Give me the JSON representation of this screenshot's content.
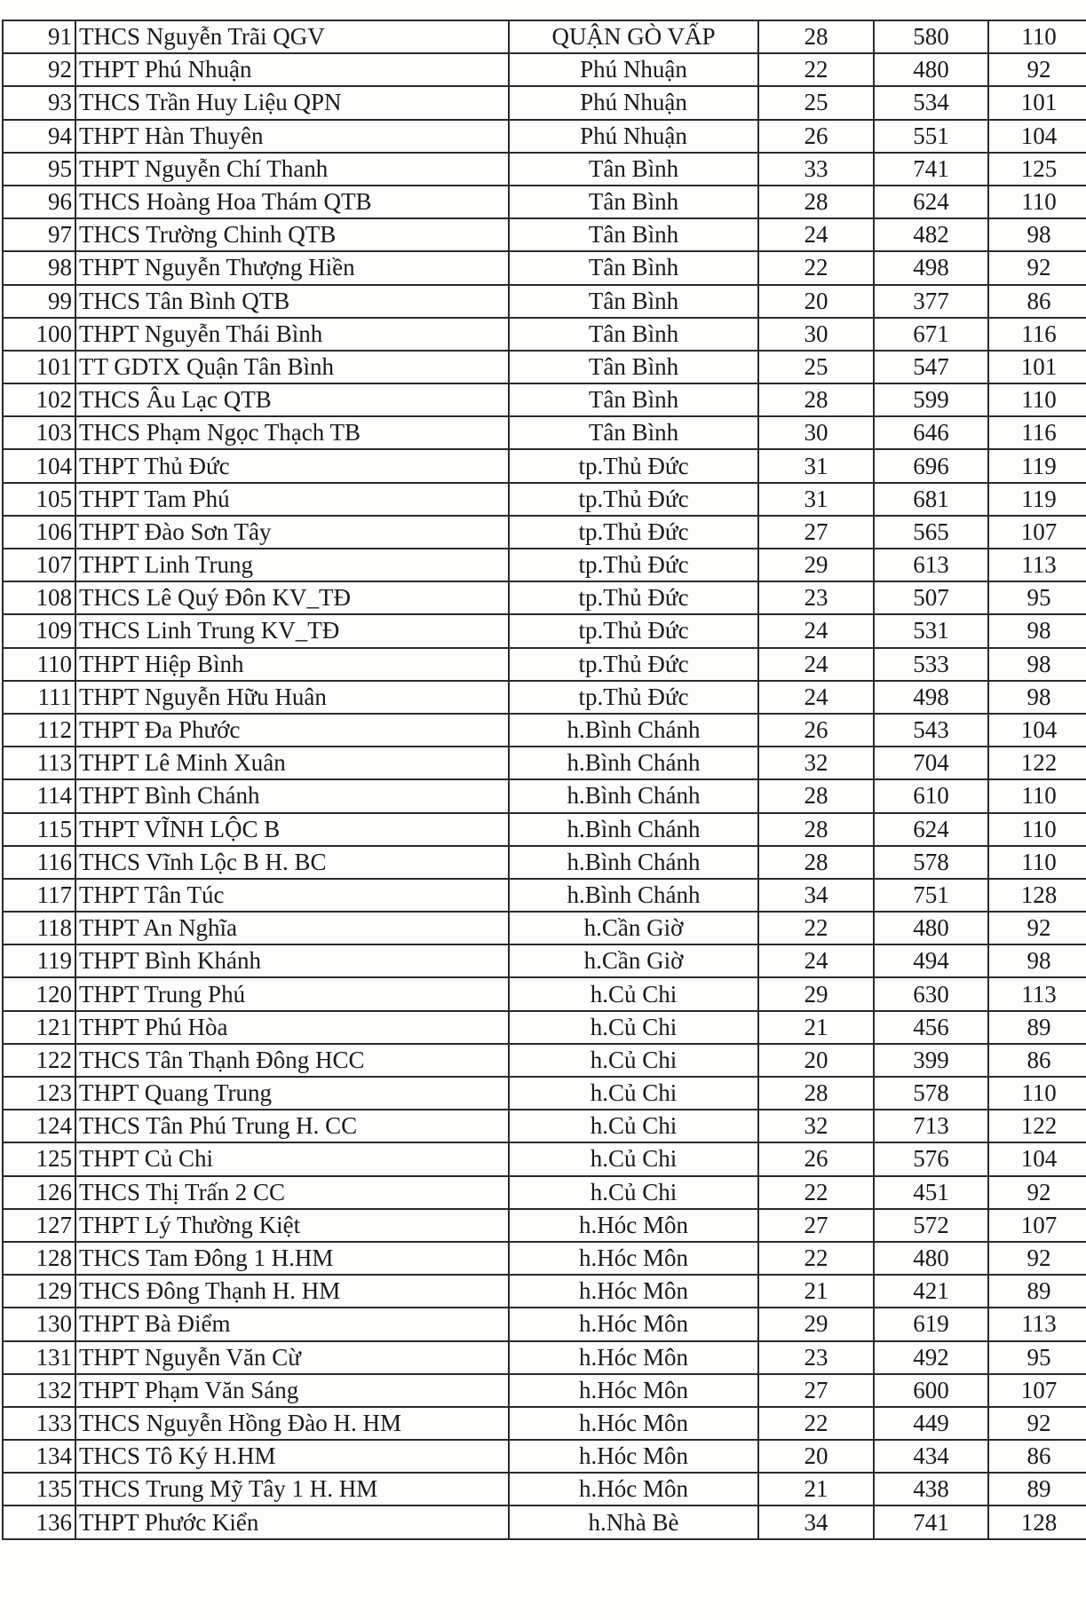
{
  "rows": [
    [
      "91",
      "THCS Nguyễn Trãi QGV",
      "QUẬN GÒ VẤP",
      "28",
      "580",
      "110"
    ],
    [
      "92",
      "THPT Phú Nhuận",
      "Phú Nhuận",
      "22",
      "480",
      "92"
    ],
    [
      "93",
      "THCS Trần Huy Liệu QPN",
      "Phú Nhuận",
      "25",
      "534",
      "101"
    ],
    [
      "94",
      "THPT Hàn Thuyên",
      "Phú Nhuận",
      "26",
      "551",
      "104"
    ],
    [
      "95",
      "THPT Nguyễn Chí Thanh",
      "Tân Bình",
      "33",
      "741",
      "125"
    ],
    [
      "96",
      "THCS Hoàng Hoa Thám QTB",
      "Tân Bình",
      "28",
      "624",
      "110"
    ],
    [
      "97",
      "THCS Trường Chinh QTB",
      "Tân Bình",
      "24",
      "482",
      "98"
    ],
    [
      "98",
      "THPT Nguyễn Thượng Hiền",
      "Tân Bình",
      "22",
      "498",
      "92"
    ],
    [
      "99",
      "THCS Tân Bình QTB",
      "Tân Bình",
      "20",
      "377",
      "86"
    ],
    [
      "100",
      "THPT Nguyễn Thái Bình",
      "Tân Bình",
      "30",
      "671",
      "116"
    ],
    [
      "101",
      "TT GDTX Quận Tân Bình",
      "Tân Bình",
      "25",
      "547",
      "101"
    ],
    [
      "102",
      "THCS Âu Lạc QTB",
      "Tân Bình",
      "28",
      "599",
      "110"
    ],
    [
      "103",
      "THCS Phạm Ngọc Thạch TB",
      "Tân Bình",
      "30",
      "646",
      "116"
    ],
    [
      "104",
      "THPT Thủ Đức",
      "tp.Thủ Đức",
      "31",
      "696",
      "119"
    ],
    [
      "105",
      "THPT Tam Phú",
      "tp.Thủ Đức",
      "31",
      "681",
      "119"
    ],
    [
      "106",
      "THPT Đào Sơn Tây",
      "tp.Thủ Đức",
      "27",
      "565",
      "107"
    ],
    [
      "107",
      "THPT Linh Trung",
      "tp.Thủ Đức",
      "29",
      "613",
      "113"
    ],
    [
      "108",
      "THCS Lê Quý Đôn KV_TĐ",
      "tp.Thủ Đức",
      "23",
      "507",
      "95"
    ],
    [
      "109",
      "THCS Linh Trung KV_TĐ",
      "tp.Thủ Đức",
      "24",
      "531",
      "98"
    ],
    [
      "110",
      "THPT Hiệp Bình",
      "tp.Thủ Đức",
      "24",
      "533",
      "98"
    ],
    [
      "111",
      "THPT Nguyễn Hữu Huân",
      "tp.Thủ Đức",
      "24",
      "498",
      "98"
    ],
    [
      "112",
      "THPT Đa Phước",
      "h.Bình Chánh",
      "26",
      "543",
      "104"
    ],
    [
      "113",
      "THPT Lê Minh Xuân",
      "h.Bình Chánh",
      "32",
      "704",
      "122"
    ],
    [
      "114",
      "THPT Bình Chánh",
      "h.Bình Chánh",
      "28",
      "610",
      "110"
    ],
    [
      "115",
      "THPT VĨNH LỘC B",
      "h.Bình Chánh",
      "28",
      "624",
      "110"
    ],
    [
      "116",
      "THCS Vĩnh Lộc B H. BC",
      "h.Bình Chánh",
      "28",
      "578",
      "110"
    ],
    [
      "117",
      "THPT Tân Túc",
      "h.Bình Chánh",
      "34",
      "751",
      "128"
    ],
    [
      "118",
      "THPT An Nghĩa",
      "h.Cần Giờ",
      "22",
      "480",
      "92"
    ],
    [
      "119",
      "THPT Bình Khánh",
      "h.Cần Giờ",
      "24",
      "494",
      "98"
    ],
    [
      "120",
      "THPT Trung Phú",
      "h.Củ Chi",
      "29",
      "630",
      "113"
    ],
    [
      "121",
      "THPT Phú Hòa",
      "h.Củ Chi",
      "21",
      "456",
      "89"
    ],
    [
      "122",
      "THCS Tân Thạnh Đông HCC",
      "h.Củ Chi",
      "20",
      "399",
      "86"
    ],
    [
      "123",
      "THPT Quang Trung",
      "h.Củ Chi",
      "28",
      "578",
      "110"
    ],
    [
      "124",
      "THCS Tân Phú Trung H. CC",
      "h.Củ Chi",
      "32",
      "713",
      "122"
    ],
    [
      "125",
      "THPT Củ Chi",
      "h.Củ Chi",
      "26",
      "576",
      "104"
    ],
    [
      "126",
      "THCS Thị Trấn 2 CC",
      "h.Củ Chi",
      "22",
      "451",
      "92"
    ],
    [
      "127",
      "THPT Lý Thường Kiệt",
      "h.Hóc Môn",
      "27",
      "572",
      "107"
    ],
    [
      "128",
      "THCS Tam Đông 1 H.HM",
      "h.Hóc Môn",
      "22",
      "480",
      "92"
    ],
    [
      "129",
      "THCS Đông Thạnh H. HM",
      "h.Hóc Môn",
      "21",
      "421",
      "89"
    ],
    [
      "130",
      "THPT Bà Điểm",
      "h.Hóc Môn",
      "29",
      "619",
      "113"
    ],
    [
      "131",
      "THPT Nguyễn Văn Cừ",
      "h.Hóc Môn",
      "23",
      "492",
      "95"
    ],
    [
      "132",
      "THPT Phạm Văn Sáng",
      "h.Hóc Môn",
      "27",
      "600",
      "107"
    ],
    [
      "133",
      "THCS Nguyễn Hồng Đào H. HM",
      "h.Hóc Môn",
      "22",
      "449",
      "92"
    ],
    [
      "134",
      "THCS Tô Ký H.HM",
      "h.Hóc Môn",
      "20",
      "434",
      "86"
    ],
    [
      "135",
      "THCS Trung Mỹ Tây 1 H. HM",
      "h.Hóc Môn",
      "21",
      "438",
      "89"
    ],
    [
      "136",
      "THPT Phước Kiển",
      "h.Nhà Bè",
      "34",
      "741",
      "128"
    ]
  ]
}
